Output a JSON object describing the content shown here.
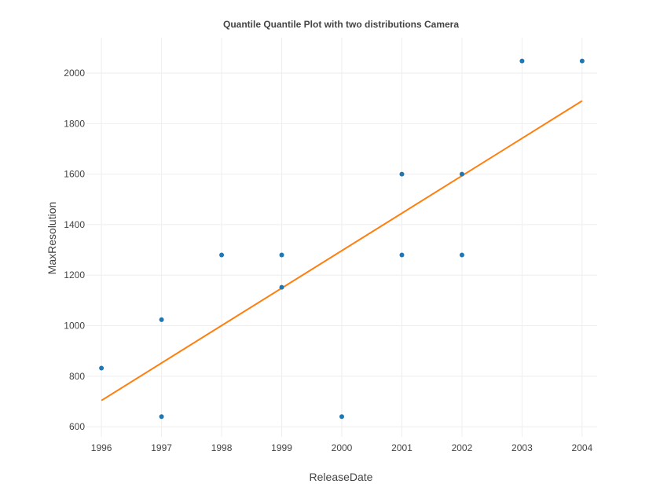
{
  "chart_data": {
    "type": "scatter",
    "title": "Quantile Quantile Plot with two distributions Camera",
    "xlabel": "ReleaseDate",
    "ylabel": "MaxResolution",
    "xlim": [
      1995.75,
      2004.25
    ],
    "ylim": [
      560,
      2140
    ],
    "x_ticks": [
      1996,
      1997,
      1998,
      1999,
      2000,
      2001,
      2002,
      2003,
      2004
    ],
    "y_ticks": [
      600,
      800,
      1000,
      1200,
      1400,
      1600,
      1800,
      2000
    ],
    "grid": true,
    "legend": false,
    "colors": {
      "points": "#1f77b4",
      "line": "#ff7f0e",
      "grid": "#eeeeee",
      "text": "#444444"
    },
    "series": [
      {
        "type": "scatter",
        "x": [
          1996,
          1997,
          1997,
          1998,
          1999,
          1999,
          2000,
          2001,
          2001,
          2002,
          2002,
          2003,
          2004
        ],
        "y": [
          832,
          1024,
          640,
          1280,
          1280,
          1152,
          640,
          1600,
          1280,
          1600,
          1280,
          2048,
          2048
        ]
      },
      {
        "type": "line",
        "x": [
          1996,
          2004
        ],
        "y": [
          704,
          1890
        ]
      }
    ]
  }
}
